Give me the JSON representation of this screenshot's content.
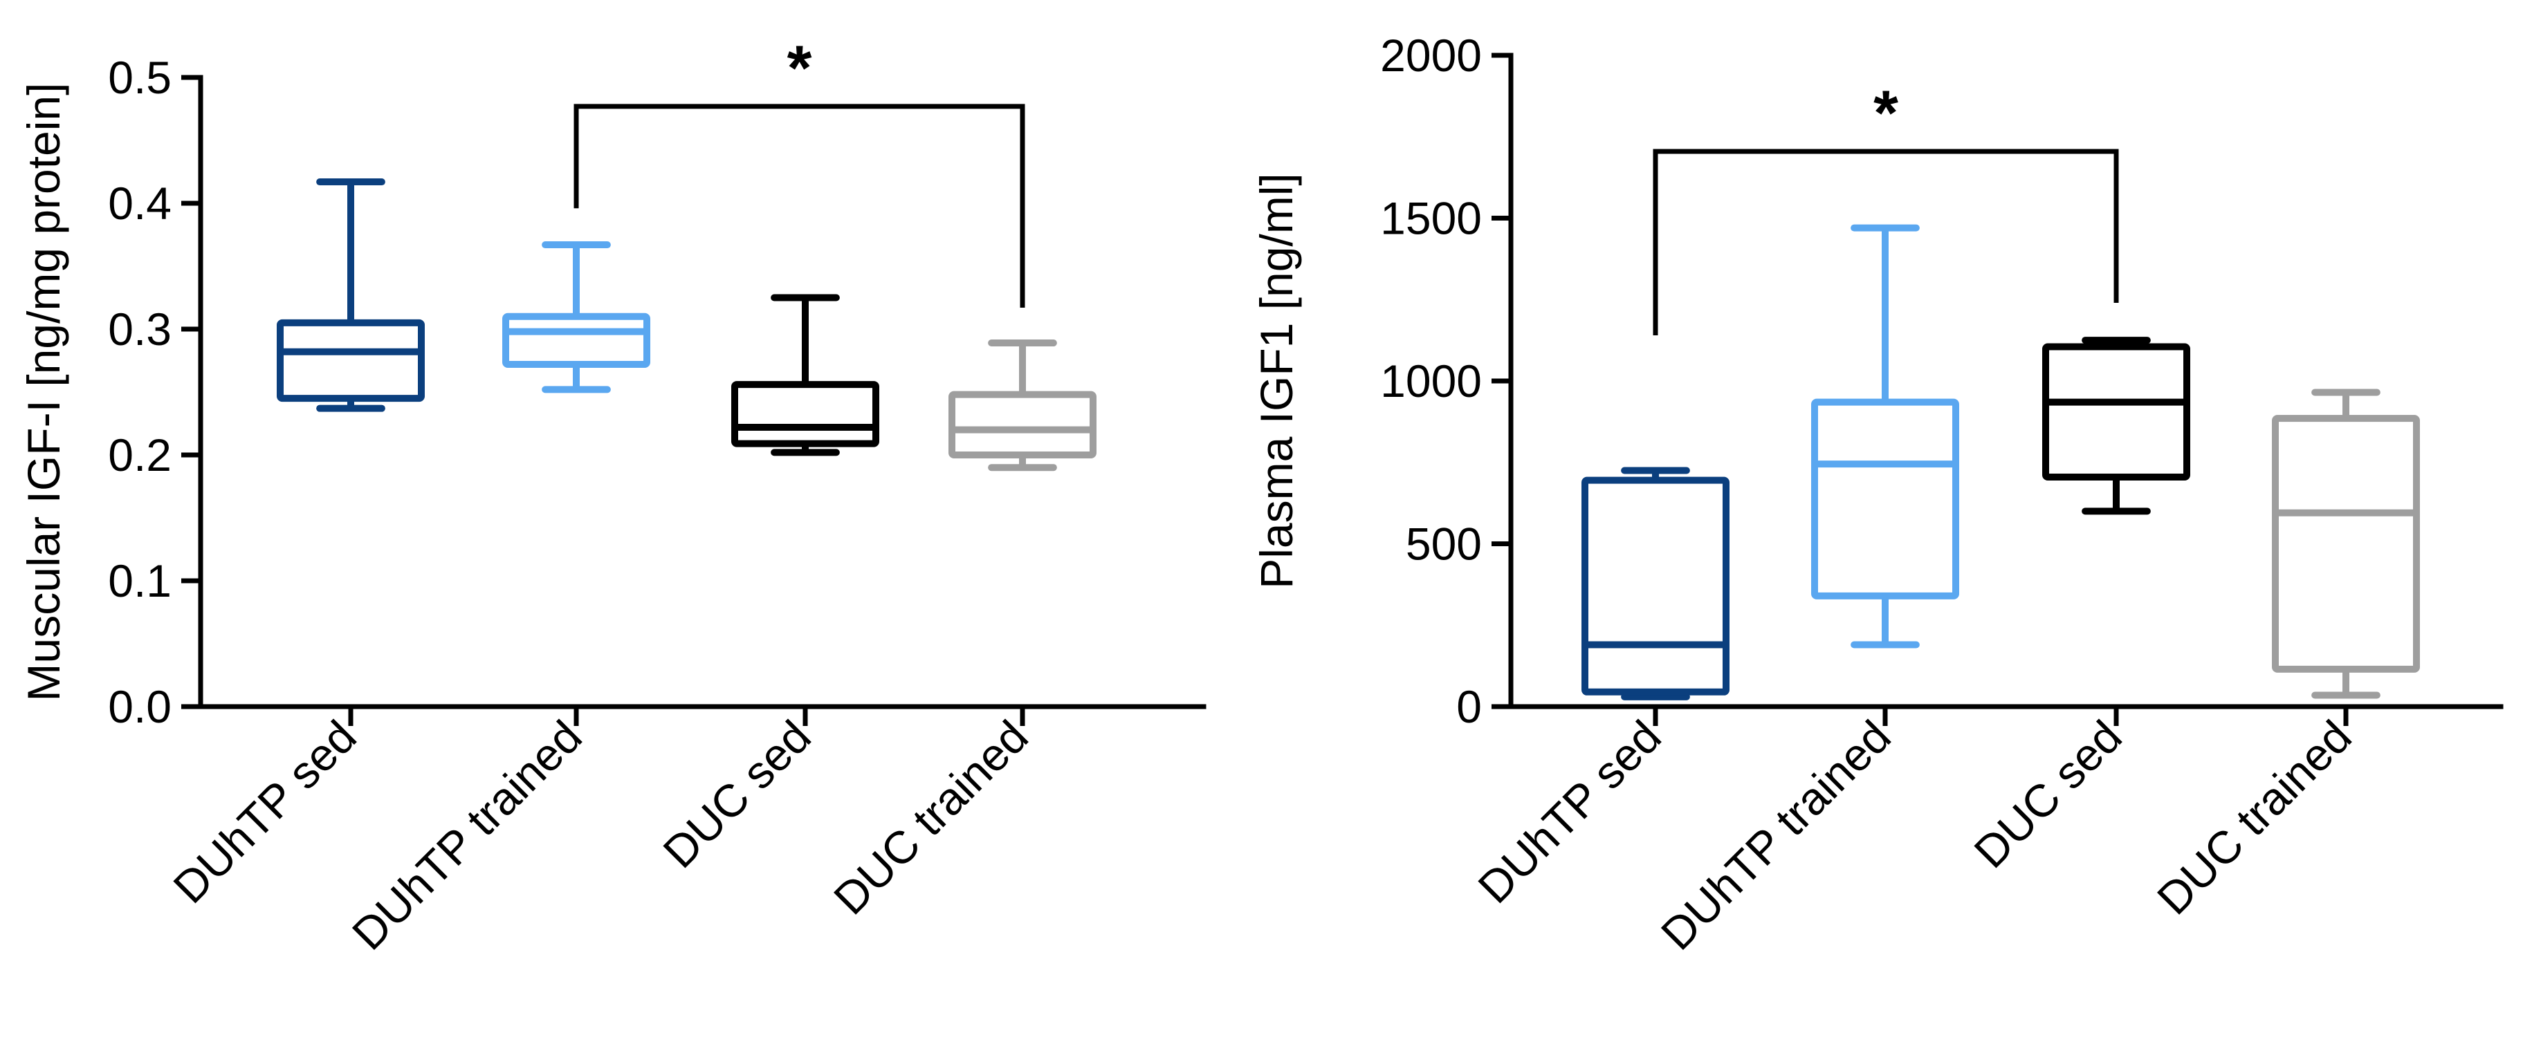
{
  "chart_data": [
    {
      "type": "box",
      "title": "",
      "xlabel": "",
      "ylabel": "Muscular IGF-I [ng/mg protein]",
      "ylim": [
        0,
        0.5
      ],
      "yticks": [
        "0.0",
        "0.1",
        "0.2",
        "0.3",
        "0.4",
        "0.5"
      ],
      "yticks_values": [
        0,
        0.1,
        0.2,
        0.3,
        0.4,
        0.5
      ],
      "grid": false,
      "categories": [
        "DUhTP sed",
        "DUhTP trained",
        "DUC sed",
        "DUC trained"
      ],
      "series": [
        {
          "category": "DUhTP sed",
          "color": "#0b3f7e",
          "min": 0.237,
          "q1": 0.245,
          "median": 0.282,
          "q3": 0.305,
          "max": 0.417
        },
        {
          "category": "DUhTP trained",
          "color": "#5aa7f0",
          "min": 0.252,
          "q1": 0.272,
          "median": 0.298,
          "q3": 0.31,
          "max": 0.367
        },
        {
          "category": "DUC sed",
          "color": "#000000",
          "min": 0.202,
          "q1": 0.209,
          "median": 0.222,
          "q3": 0.256,
          "max": 0.325
        },
        {
          "category": "DUC trained",
          "color": "#9e9e9e",
          "min": 0.19,
          "q1": 0.2,
          "median": 0.22,
          "q3": 0.248,
          "max": 0.289
        }
      ],
      "significance": {
        "from": "DUhTP trained",
        "to": "DUC trained",
        "level": 0.477,
        "left_drop": 0.396,
        "right_drop": 0.317,
        "label": "*"
      }
    },
    {
      "type": "box",
      "title": "",
      "xlabel": "",
      "ylabel": "Plasma IGF1 [ng/ml]",
      "ylim": [
        0,
        2000
      ],
      "yticks": [
        "0",
        "500",
        "1000",
        "1500",
        "2000"
      ],
      "yticks_values": [
        0,
        500,
        1000,
        1500,
        2000
      ],
      "grid": false,
      "categories": [
        "DUhTP sed",
        "DUhTP trained",
        "DUC sed",
        "DUC trained"
      ],
      "series": [
        {
          "category": "DUhTP sed",
          "color": "#0b3f7e",
          "min": 30,
          "q1": 45,
          "median": 190,
          "q3": 695,
          "max": 725
        },
        {
          "category": "DUhTP trained",
          "color": "#5aa7f0",
          "min": 190,
          "q1": 340,
          "median": 745,
          "q3": 935,
          "max": 1470
        },
        {
          "category": "DUC sed",
          "color": "#000000",
          "min": 600,
          "q1": 705,
          "median": 935,
          "q3": 1105,
          "max": 1125
        },
        {
          "category": "DUC trained",
          "color": "#9e9e9e",
          "min": 35,
          "q1": 115,
          "median": 595,
          "q3": 885,
          "max": 965
        }
      ],
      "significance": {
        "from": "DUhTP sed",
        "to": "DUC sed",
        "level": 1705,
        "left_drop": 1140,
        "right_drop": 1240,
        "label": "*"
      }
    }
  ]
}
